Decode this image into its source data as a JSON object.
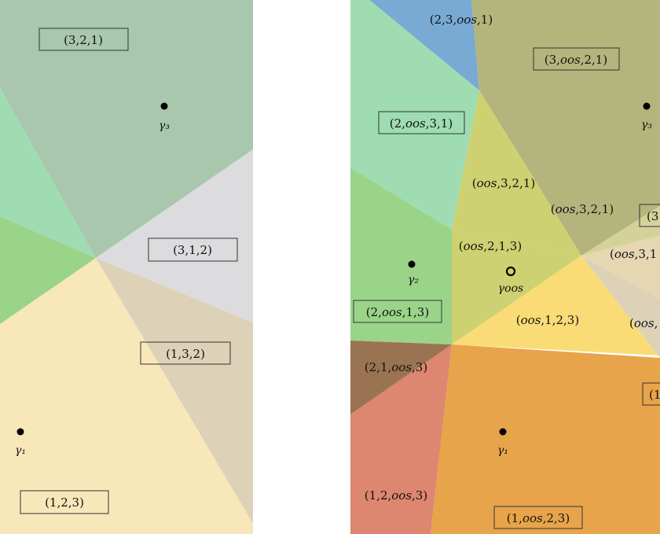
{
  "colors": {
    "green_light": "#9fdcb2",
    "green": "#9ad489",
    "gray_green": "#a8c7ad",
    "lavender": "#dcdcdf",
    "cream": "#f8e7b8",
    "taupe": "#ddd2b8",
    "blue": "#79aad3",
    "olive": "#b3b57d",
    "yellow_green": "#cdd171",
    "light_tan": "#d4d29b",
    "pale_peach": "#e6d6b2",
    "yellow": "#f9dc75",
    "brown": "#9a7352",
    "orange": "#e7a44a",
    "salmon": "#dd8670",
    "white": "#ffffff"
  },
  "left_panel": {
    "labels": {
      "r321": "(3,2,1)",
      "r312": "(3,1,2)",
      "r132": "(1,3,2)",
      "r123": "(1,2,3)"
    },
    "points": {
      "g3": "γ₃",
      "g1": "γ₁"
    }
  },
  "right_panel": {
    "labels": {
      "r23oos1": "(2,3,oos,1)",
      "r3oos21": "(3,oos,2,1)",
      "r2oos31": "(2,oos,3,1)",
      "roos321a": "(oos,3,2,1)",
      "roos321b": "(oos,3,2,1)",
      "r3cut": "(3",
      "roos213": "(oos,2,1,3)",
      "roos31cut": "(oos,3,1",
      "r2oos13": "(2,oos,1,3)",
      "roos123": "(oos,1,2,3)",
      "rooscut": "(oos,",
      "r21oos3": "(2,1,oos,3)",
      "r1cut": "(1",
      "r12oos3": "(1,2,oos,3)",
      "r1oos23": "(1,oos,2,3)"
    },
    "points": {
      "g3": "γ₃",
      "g2": "γ₂",
      "goos": "γoos",
      "g1": "γ₁"
    }
  }
}
